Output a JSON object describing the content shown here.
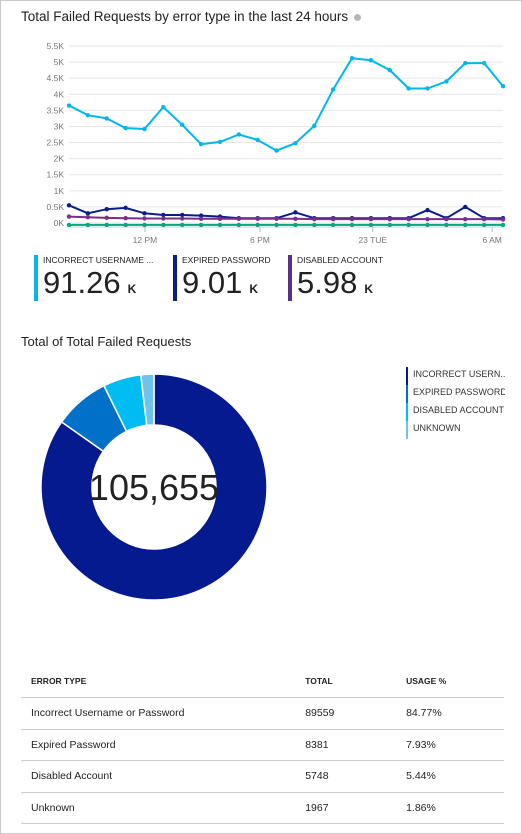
{
  "line_title": "Total Failed Requests by error type in the last 24 hours",
  "kpis": [
    {
      "label": "INCORRECT USERNAME ...",
      "value": "91.26",
      "unit": "K",
      "color": "#00b7eb"
    },
    {
      "label": "EXPIRED PASSWORD",
      "value": "9.01",
      "unit": "K",
      "color": "#0a1e8a"
    },
    {
      "label": "DISABLED ACCOUNT",
      "value": "5.98",
      "unit": "K",
      "color": "#5c2d91"
    }
  ],
  "donut_title": "Total of Total Failed Requests",
  "donut_total": "105,655",
  "table": {
    "headers": [
      "ERROR TYPE",
      "TOTAL",
      "USAGE %"
    ],
    "rows": [
      [
        "Incorrect Username or Password",
        "89559",
        "84.77%"
      ],
      [
        "Expired Password",
        "8381",
        "7.93%"
      ],
      [
        "Disabled Account",
        "5748",
        "5.44%"
      ],
      [
        "Unknown",
        "1967",
        "1.86%"
      ]
    ]
  },
  "chart_data": [
    {
      "type": "line",
      "title": "Total Failed Requests by error type in the last 24 hours",
      "x_ticks": [
        "12 PM",
        "6 PM",
        "23 TUE",
        "6 AM"
      ],
      "y_ticks": [
        "5.5K",
        "5K",
        "4.5K",
        "4K",
        "3.5K",
        "3K",
        "2.5K",
        "2K",
        "1.5K",
        "1K",
        "0.5K",
        "0K"
      ],
      "ylim": [
        0,
        5500
      ],
      "grid": "horizontal",
      "series": [
        {
          "color": "#00b7eb",
          "values": [
            3650,
            3350,
            3250,
            2950,
            2920,
            3600,
            3050,
            2450,
            2520,
            2750,
            2580,
            2250,
            2480,
            3020,
            4150,
            5120,
            5060,
            4750,
            4180,
            4180,
            4400,
            4970,
            4970,
            4250
          ]
        },
        {
          "color": "#0a1e8a",
          "values": [
            550,
            300,
            430,
            470,
            300,
            250,
            250,
            230,
            200,
            150,
            150,
            150,
            330,
            150,
            150,
            150,
            150,
            150,
            150,
            400,
            150,
            500,
            150,
            150
          ]
        },
        {
          "color": "#7a2d8c",
          "values": [
            200,
            180,
            160,
            150,
            140,
            140,
            140,
            130,
            130,
            130,
            130,
            130,
            130,
            120,
            120,
            120,
            120,
            120,
            120,
            120,
            120,
            120,
            120,
            110
          ]
        },
        {
          "color": "#00a97e",
          "values": [
            -60,
            -60,
            -60,
            -60,
            -60,
            -60,
            -60,
            -60,
            -60,
            -60,
            -60,
            -60,
            -60,
            -60,
            -60,
            -60,
            -60,
            -60,
            -60,
            -60,
            -60,
            -60,
            -60,
            -60
          ]
        }
      ]
    },
    {
      "type": "pie",
      "title": "Total of Total Failed Requests",
      "total": "105,655",
      "legend_position": "top-right",
      "labels": [
        "INCORRECT USERN...",
        "EXPIRED PASSWORD",
        "DISABLED ACCOUNT",
        "UNKNOWN"
      ],
      "values": [
        89559,
        8381,
        5748,
        1967
      ],
      "colors": [
        "#051a8f",
        "#0070c8",
        "#00bcf0",
        "#6ec3ea"
      ]
    }
  ]
}
